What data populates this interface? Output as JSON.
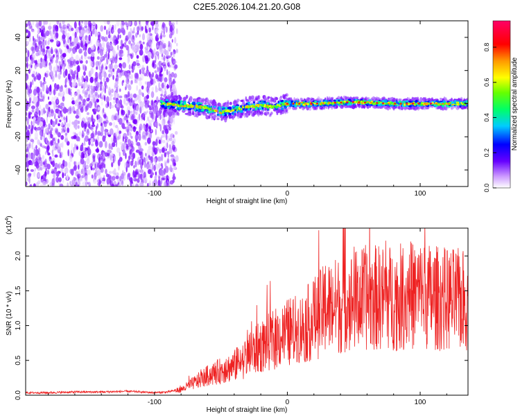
{
  "title": "C2E5.2026.104.21.20.G08",
  "colors": {
    "snr_line": "#ee2222",
    "spectrogram_low": "#9b30ff",
    "axis": "#000000"
  },
  "chart_data": [
    {
      "type": "heatmap",
      "name": "spectrogram",
      "xlabel": "Height of straight line (km)",
      "ylabel": "Frequency (Hz)",
      "xlim": [
        -197,
        136
      ],
      "ylim": [
        -50,
        50
      ],
      "xticks": [
        -100,
        0,
        100
      ],
      "yticks": [
        -40,
        -20,
        0,
        20,
        40
      ],
      "noise_region_x": [
        -197,
        -83
      ],
      "signal_track": {
        "x": [
          -95,
          -80,
          -65,
          -50,
          -40,
          -30,
          -20,
          -10,
          0,
          20,
          50,
          80,
          110,
          136
        ],
        "frequency": [
          0,
          -1,
          -2,
          -5,
          -4,
          -2,
          -1,
          -2,
          0,
          0,
          1,
          0,
          0,
          0
        ]
      },
      "colorbar": {
        "label": "Normalized spectral amplitude",
        "range": [
          0.0,
          0.95
        ],
        "ticks": [
          "0.0",
          "0.2",
          "0.4",
          "0.6",
          "0.8"
        ]
      }
    },
    {
      "type": "line",
      "name": "snr",
      "xlabel": "Height of straight line (km)",
      "ylabel": "SNR (10 * v/v)",
      "y_multiplier": "(x10",
      "y_multiplier_exp": "4",
      "y_multiplier_close": ")",
      "xlim": [
        -197,
        136
      ],
      "ylim": [
        0,
        2.4
      ],
      "xticks": [
        -100,
        0,
        100
      ],
      "yticks": [
        0.0,
        0.5,
        1.0,
        1.5,
        2.0
      ],
      "series": [
        {
          "name": "SNR",
          "x": [
            -197,
            -180,
            -160,
            -140,
            -120,
            -100,
            -90,
            -80,
            -70,
            -60,
            -50,
            -40,
            -30,
            -20,
            -10,
            0,
            10,
            20,
            30,
            40,
            50,
            60,
            70,
            80,
            90,
            100,
            110,
            120,
            136
          ],
          "values": [
            0.03,
            0.03,
            0.04,
            0.04,
            0.05,
            0.03,
            0.04,
            0.08,
            0.18,
            0.28,
            0.35,
            0.42,
            0.55,
            0.7,
            0.8,
            0.9,
            0.95,
            1.1,
            1.25,
            1.3,
            1.35,
            1.4,
            1.4,
            1.4,
            1.42,
            1.45,
            1.4,
            1.38,
            1.35
          ]
        }
      ]
    }
  ]
}
